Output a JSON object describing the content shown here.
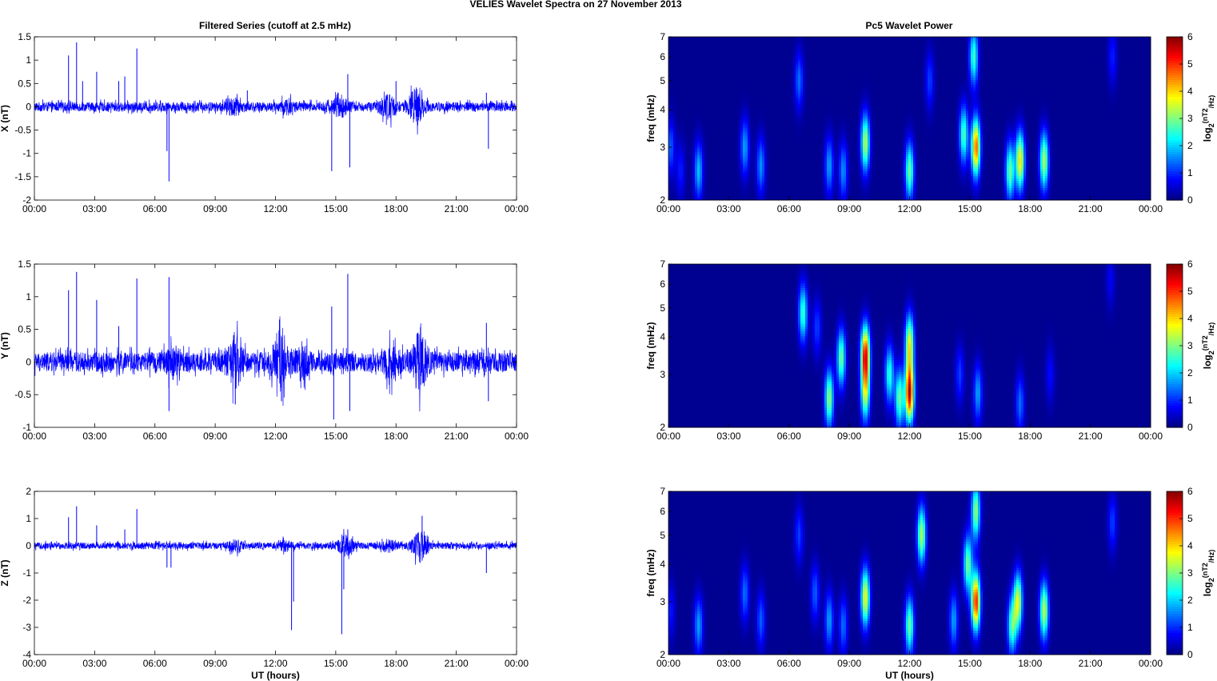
{
  "figure": {
    "title": "VELIES Wavelet Spectra on 27 November  2013",
    "left_title": "Filtered Series (cutoff at 2.5 mHz)",
    "right_title": "Pc5 Wavelet Power",
    "xlabel": "UT (hours)"
  },
  "chart_data": [
    {
      "type": "line",
      "component": "X",
      "ylabel": "X (nT)",
      "xlabel": "",
      "x_ticks": [
        "00:00",
        "03:00",
        "06:00",
        "09:00",
        "12:00",
        "15:00",
        "18:00",
        "21:00",
        "00:00"
      ],
      "xlim_hours": [
        0,
        24
      ],
      "ylim": [
        -2,
        1.5
      ],
      "y_ticks": [
        -2,
        -1.5,
        -1,
        -0.5,
        0,
        0.5,
        1,
        1.5
      ],
      "line_color": "#0000ff",
      "baseline_noise_nT": 0.1,
      "bursts": [
        {
          "t": 9.9,
          "amp": 0.12
        },
        {
          "t": 12.6,
          "amp": 0.1
        },
        {
          "t": 15.2,
          "amp": 0.18
        },
        {
          "t": 17.6,
          "amp": 0.22
        },
        {
          "t": 19.0,
          "amp": 0.35
        }
      ],
      "spikes": [
        {
          "t": 1.7,
          "v": 1.1
        },
        {
          "t": 2.1,
          "v": 1.38
        },
        {
          "t": 2.4,
          "v": 0.55
        },
        {
          "t": 3.1,
          "v": 0.75
        },
        {
          "t": 4.2,
          "v": 0.55
        },
        {
          "t": 4.5,
          "v": 0.65
        },
        {
          "t": 5.1,
          "v": 1.25
        },
        {
          "t": 6.7,
          "v": -1.6
        },
        {
          "t": 6.6,
          "v": -0.95
        },
        {
          "t": 10.6,
          "v": 0.35
        },
        {
          "t": 14.8,
          "v": -1.38
        },
        {
          "t": 15.6,
          "v": 0.7
        },
        {
          "t": 15.7,
          "v": -1.3
        },
        {
          "t": 18.0,
          "v": 0.55
        },
        {
          "t": 22.6,
          "v": -0.9
        },
        {
          "t": 22.5,
          "v": 0.3
        }
      ]
    },
    {
      "type": "line",
      "component": "Y",
      "ylabel": "Y (nT)",
      "xlabel": "",
      "x_ticks": [
        "00:00",
        "03:00",
        "06:00",
        "09:00",
        "12:00",
        "15:00",
        "18:00",
        "21:00",
        "00:00"
      ],
      "xlim_hours": [
        0,
        24
      ],
      "ylim": [
        -1,
        1.5
      ],
      "y_ticks": [
        -1,
        -0.5,
        0,
        0.5,
        1,
        1.5
      ],
      "line_color": "#0000ff",
      "baseline_noise_nT": 0.15,
      "bursts": [
        {
          "t": 6.9,
          "amp": 0.15
        },
        {
          "t": 10.0,
          "amp": 0.28
        },
        {
          "t": 12.2,
          "amp": 0.35
        },
        {
          "t": 13.3,
          "amp": 0.15
        },
        {
          "t": 17.8,
          "amp": 0.2
        },
        {
          "t": 19.2,
          "amp": 0.35
        }
      ],
      "spikes": [
        {
          "t": 1.7,
          "v": 1.1
        },
        {
          "t": 2.1,
          "v": 1.38
        },
        {
          "t": 3.1,
          "v": 0.95
        },
        {
          "t": 4.2,
          "v": 0.55
        },
        {
          "t": 5.1,
          "v": 1.28
        },
        {
          "t": 6.7,
          "v": 1.3
        },
        {
          "t": 6.7,
          "v": -0.75
        },
        {
          "t": 10.0,
          "v": -0.65
        },
        {
          "t": 12.2,
          "v": 0.65
        },
        {
          "t": 12.3,
          "v": -0.6
        },
        {
          "t": 14.8,
          "v": 0.85
        },
        {
          "t": 14.9,
          "v": -0.88
        },
        {
          "t": 15.6,
          "v": 1.35
        },
        {
          "t": 15.7,
          "v": -0.75
        },
        {
          "t": 22.5,
          "v": 0.6
        },
        {
          "t": 22.6,
          "v": -0.6
        }
      ]
    },
    {
      "type": "line",
      "component": "Z",
      "ylabel": "Z (nT)",
      "xlabel": "UT (hours)",
      "x_ticks": [
        "00:00",
        "03:00",
        "06:00",
        "09:00",
        "12:00",
        "15:00",
        "18:00",
        "21:00",
        "00:00"
      ],
      "xlim_hours": [
        0,
        24
      ],
      "ylim": [
        -4,
        2
      ],
      "y_ticks": [
        -4,
        -3,
        -2,
        -1,
        0,
        1,
        2
      ],
      "line_color": "#0000ff",
      "baseline_noise_nT": 0.12,
      "bursts": [
        {
          "t": 10.0,
          "amp": 0.15
        },
        {
          "t": 12.5,
          "amp": 0.12
        },
        {
          "t": 15.5,
          "amp": 0.3
        },
        {
          "t": 17.6,
          "amp": 0.15
        },
        {
          "t": 19.2,
          "amp": 0.5
        }
      ],
      "spikes": [
        {
          "t": 1.7,
          "v": 1.05
        },
        {
          "t": 2.1,
          "v": 1.45
        },
        {
          "t": 3.1,
          "v": 0.75
        },
        {
          "t": 4.5,
          "v": 0.6
        },
        {
          "t": 5.1,
          "v": 1.35
        },
        {
          "t": 6.6,
          "v": -0.8
        },
        {
          "t": 6.8,
          "v": -0.8
        },
        {
          "t": 12.8,
          "v": -3.1
        },
        {
          "t": 12.9,
          "v": -2.05
        },
        {
          "t": 15.3,
          "v": -3.25
        },
        {
          "t": 15.6,
          "v": 0.6
        },
        {
          "t": 15.4,
          "v": -1.6
        },
        {
          "t": 19.3,
          "v": 1.1
        },
        {
          "t": 22.5,
          "v": -1.0
        }
      ]
    },
    {
      "type": "heatmap",
      "component": "X",
      "ylabel": "freq (mHz)",
      "colorbar_label": "log2(nT^2/Hz)",
      "x_ticks": [
        "00:00",
        "03:00",
        "06:00",
        "09:00",
        "12:00",
        "15:00",
        "18:00",
        "21:00",
        "00:00"
      ],
      "xlim_hours": [
        0,
        24
      ],
      "freq_range_mHz": [
        2,
        7
      ],
      "y_scale": "log",
      "y_ticks": [
        2,
        3,
        4,
        5,
        6,
        7
      ],
      "clim": [
        0,
        6
      ],
      "colorbar_ticks": [
        0,
        1,
        2,
        3,
        4,
        5,
        6
      ],
      "colormap": "jet",
      "blobs": [
        {
          "t": 0.1,
          "f": 3.0,
          "val": 1.2
        },
        {
          "t": 0.6,
          "f": 2.5,
          "val": 0.8
        },
        {
          "t": 1.5,
          "f": 2.5,
          "val": 1.8
        },
        {
          "t": 3.8,
          "f": 3.0,
          "val": 1.6
        },
        {
          "t": 4.6,
          "f": 2.6,
          "val": 1.5
        },
        {
          "t": 6.5,
          "f": 5.0,
          "val": 1.3
        },
        {
          "t": 8.0,
          "f": 2.6,
          "val": 1.6
        },
        {
          "t": 8.7,
          "f": 2.5,
          "val": 1.5
        },
        {
          "t": 9.8,
          "f": 3.1,
          "val": 3.2
        },
        {
          "t": 12.0,
          "f": 2.5,
          "val": 2.8
        },
        {
          "t": 13.0,
          "f": 5.0,
          "val": 1.0
        },
        {
          "t": 14.7,
          "f": 3.3,
          "val": 2.6
        },
        {
          "t": 15.3,
          "f": 3.0,
          "val": 4.6
        },
        {
          "t": 15.2,
          "f": 6.0,
          "val": 2.5
        },
        {
          "t": 17.0,
          "f": 2.5,
          "val": 2.8
        },
        {
          "t": 17.5,
          "f": 2.7,
          "val": 3.8
        },
        {
          "t": 18.7,
          "f": 2.7,
          "val": 3.2
        },
        {
          "t": 22.1,
          "f": 6.0,
          "val": 0.8
        }
      ]
    },
    {
      "type": "heatmap",
      "component": "Y",
      "ylabel": "freq (mHz)",
      "colorbar_label": "log2(nT^2/Hz)",
      "x_ticks": [
        "00:00",
        "03:00",
        "06:00",
        "09:00",
        "12:00",
        "15:00",
        "18:00",
        "21:00",
        "00:00"
      ],
      "xlim_hours": [
        0,
        24
      ],
      "freq_range_mHz": [
        2,
        7
      ],
      "y_scale": "log",
      "y_ticks": [
        2,
        3,
        4,
        5,
        6,
        7
      ],
      "clim": [
        0,
        6
      ],
      "colorbar_ticks": [
        0,
        1,
        2,
        3,
        4,
        5,
        6
      ],
      "colormap": "jet",
      "blobs": [
        {
          "t": 6.7,
          "f": 4.8,
          "val": 2.5
        },
        {
          "t": 7.4,
          "f": 4.3,
          "val": 1.0
        },
        {
          "t": 8.0,
          "f": 2.5,
          "val": 3.0
        },
        {
          "t": 8.6,
          "f": 3.4,
          "val": 2.8
        },
        {
          "t": 9.8,
          "f": 3.5,
          "val": 5.0
        },
        {
          "t": 9.8,
          "f": 2.6,
          "val": 3.0
        },
        {
          "t": 11.0,
          "f": 3.0,
          "val": 2.4
        },
        {
          "t": 11.5,
          "f": 2.5,
          "val": 2.8
        },
        {
          "t": 12.0,
          "f": 2.6,
          "val": 5.5
        },
        {
          "t": 12.0,
          "f": 3.8,
          "val": 3.5
        },
        {
          "t": 14.5,
          "f": 3.0,
          "val": 1.0
        },
        {
          "t": 15.4,
          "f": 2.6,
          "val": 1.6
        },
        {
          "t": 17.5,
          "f": 2.4,
          "val": 1.3
        },
        {
          "t": 19.0,
          "f": 3.0,
          "val": 0.7
        },
        {
          "t": 22.0,
          "f": 6.2,
          "val": 0.6
        }
      ]
    },
    {
      "type": "heatmap",
      "component": "Z",
      "ylabel": "freq (mHz)",
      "colorbar_label": "log2(nT^2/Hz)",
      "x_ticks": [
        "00:00",
        "03:00",
        "06:00",
        "09:00",
        "12:00",
        "15:00",
        "18:00",
        "21:00",
        "00:00"
      ],
      "xlim_hours": [
        0,
        24
      ],
      "freq_range_mHz": [
        2,
        7
      ],
      "y_scale": "log",
      "y_ticks": [
        2,
        3,
        4,
        5,
        6,
        7
      ],
      "clim": [
        0,
        6
      ],
      "colorbar_ticks": [
        0,
        1,
        2,
        3,
        4,
        5,
        6
      ],
      "colormap": "jet",
      "blobs": [
        {
          "t": 0.1,
          "f": 2.8,
          "val": 0.8
        },
        {
          "t": 1.5,
          "f": 2.5,
          "val": 1.6
        },
        {
          "t": 3.8,
          "f": 3.2,
          "val": 1.3
        },
        {
          "t": 4.6,
          "f": 2.6,
          "val": 1.2
        },
        {
          "t": 6.5,
          "f": 5.0,
          "val": 1.0
        },
        {
          "t": 7.3,
          "f": 3.2,
          "val": 1.2
        },
        {
          "t": 8.0,
          "f": 2.6,
          "val": 1.6
        },
        {
          "t": 8.7,
          "f": 2.5,
          "val": 1.3
        },
        {
          "t": 9.8,
          "f": 3.1,
          "val": 3.6
        },
        {
          "t": 12.0,
          "f": 2.5,
          "val": 2.8
        },
        {
          "t": 12.6,
          "f": 5.0,
          "val": 3.2
        },
        {
          "t": 14.2,
          "f": 2.6,
          "val": 1.6
        },
        {
          "t": 14.9,
          "f": 4.0,
          "val": 2.8
        },
        {
          "t": 15.3,
          "f": 3.0,
          "val": 5.0
        },
        {
          "t": 15.3,
          "f": 6.0,
          "val": 3.0
        },
        {
          "t": 17.1,
          "f": 2.5,
          "val": 2.6
        },
        {
          "t": 17.4,
          "f": 3.0,
          "val": 3.4
        },
        {
          "t": 18.7,
          "f": 2.8,
          "val": 3.3
        },
        {
          "t": 22.1,
          "f": 5.5,
          "val": 1.0
        }
      ]
    }
  ]
}
